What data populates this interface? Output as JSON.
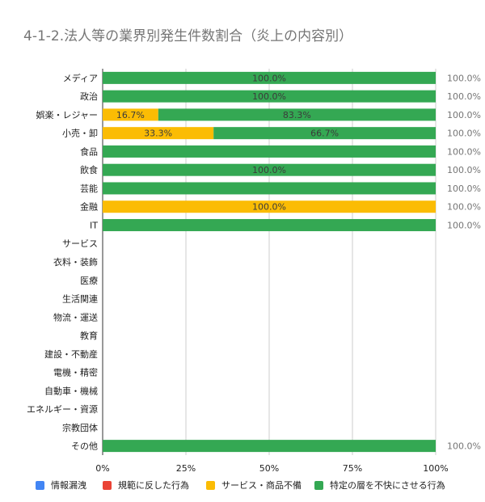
{
  "chart_data": {
    "type": "bar",
    "orientation": "horizontal",
    "stacked": "percent",
    "title": "4-1-2.法人等の業界別発生件数割合（炎上の内容別）",
    "categories": [
      "メディア",
      "政治",
      "娯楽・レジャー",
      "小売・卸",
      "食品",
      "飲食",
      "芸能",
      "金融",
      "IT",
      "サービス",
      "衣料・装飾",
      "医療",
      "生活関連",
      "物流・運送",
      "教育",
      "建設・不動産",
      "電機・精密",
      "自動車・機械",
      "エネルギー・資源",
      "宗教団体",
      "その他"
    ],
    "series": [
      {
        "name": "情報漏洩",
        "color": "#4285f4",
        "values": [
          0,
          0,
          0,
          0,
          0,
          0,
          0,
          0,
          0,
          null,
          null,
          null,
          null,
          null,
          null,
          null,
          null,
          null,
          null,
          null,
          0
        ]
      },
      {
        "name": "規範に反した行為",
        "color": "#ea4335",
        "values": [
          0,
          0,
          0,
          0,
          0,
          0,
          0,
          0,
          0,
          null,
          null,
          null,
          null,
          null,
          null,
          null,
          null,
          null,
          null,
          null,
          0
        ]
      },
      {
        "name": "サービス・商品不備",
        "color": "#fbbc04",
        "values": [
          0,
          0,
          16.7,
          33.3,
          0,
          0,
          0,
          100,
          0,
          null,
          null,
          null,
          null,
          null,
          null,
          null,
          null,
          null,
          null,
          null,
          0
        ]
      },
      {
        "name": "特定の層を不快にさせる行為",
        "color": "#34a853",
        "values": [
          100,
          100,
          83.3,
          66.7,
          100,
          100,
          100,
          0,
          100,
          null,
          null,
          null,
          null,
          null,
          null,
          null,
          null,
          null,
          null,
          null,
          100
        ]
      }
    ],
    "segment_labels": [
      [
        "100.0%"
      ],
      [
        "100.0%"
      ],
      [
        "16.7%",
        "83.3%"
      ],
      [
        "33.3%",
        "66.7%"
      ],
      [],
      [
        "100.0%"
      ],
      [],
      [
        "100.0%"
      ],
      [],
      [],
      [],
      [],
      [],
      [],
      [],
      [],
      [],
      [],
      [],
      [],
      []
    ],
    "total_labels": [
      "100.0%",
      "100.0%",
      "100.0%",
      "100.0%",
      "100.0%",
      "100.0%",
      "100.0%",
      "100.0%",
      "100.0%",
      "",
      "",
      "",
      "",
      "",
      "",
      "",
      "",
      "",
      "",
      "",
      "100.0%"
    ],
    "x_ticks": [
      "0%",
      "25%",
      "50%",
      "75%",
      "100%"
    ],
    "xlim": [
      0,
      100
    ],
    "grid": true,
    "legend_position": "bottom"
  }
}
